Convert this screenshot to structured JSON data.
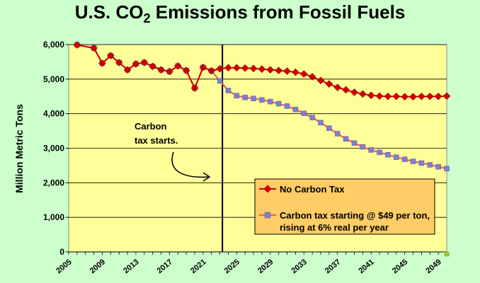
{
  "chart_data": {
    "type": "line",
    "title_main": "U.S. CO",
    "title_sub": "2",
    "title_rest": " Emissions from Fossil Fuels",
    "ylabel": "Million Metric Tons",
    "xlabel": "",
    "xlim": [
      2005,
      2050
    ],
    "ylim": [
      0,
      6000
    ],
    "yticks": [
      0,
      1000,
      2000,
      3000,
      4000,
      5000,
      6000
    ],
    "ytick_labels": [
      "0",
      "1,000",
      "2,000",
      "3,000",
      "4,000",
      "5,000",
      "6,000"
    ],
    "xticks": [
      2005,
      2009,
      2013,
      2017,
      2021,
      2025,
      2029,
      2033,
      2037,
      2041,
      2045,
      2049
    ],
    "xtick_labels": [
      "2005",
      "2009",
      "2013",
      "2017",
      "2021",
      "2025",
      "2029",
      "2033",
      "2037",
      "2041",
      "2045",
      "2049"
    ],
    "grid": "horizontal",
    "background_plot": "#ffff99",
    "background_page": "#ccffcc",
    "annotation": {
      "line1": "Carbon",
      "line2": "tax starts.",
      "marker_x": 2023.3
    },
    "legend": {
      "placement": "bottom-right",
      "background": "#ffcc66"
    },
    "series": [
      {
        "name": "No Carbon Tax",
        "color": "#cc0000",
        "marker_color": "#cc0000",
        "marker": "diamond",
        "x": [
          2006,
          2008,
          2009,
          2010,
          2011,
          2012,
          2013,
          2014,
          2015,
          2016,
          2017,
          2018,
          2019,
          2020,
          2021,
          2022,
          2023,
          2024,
          2025,
          2026,
          2027,
          2028,
          2029,
          2030,
          2031,
          2032,
          2033,
          2034,
          2035,
          2036,
          2037,
          2038,
          2039,
          2040,
          2041,
          2042,
          2043,
          2044,
          2045,
          2046,
          2047,
          2048,
          2049,
          2050
        ],
        "values": [
          5990,
          5900,
          5460,
          5680,
          5480,
          5270,
          5440,
          5480,
          5370,
          5270,
          5220,
          5380,
          5250,
          4740,
          5340,
          5240,
          5300,
          5330,
          5330,
          5320,
          5310,
          5290,
          5270,
          5250,
          5230,
          5200,
          5150,
          5070,
          4960,
          4860,
          4760,
          4690,
          4620,
          4570,
          4530,
          4510,
          4500,
          4500,
          4490,
          4490,
          4500,
          4500,
          4500,
          4510
        ],
        "label_line1": "No Carbon Tax",
        "label_line2": ""
      },
      {
        "name": "Carbon tax starting @ $49 per ton, rising at 6% real per year",
        "color": "#ff5050",
        "marker_color": "#7f7fcc",
        "marker": "square",
        "x": [
          2006,
          2008,
          2009,
          2010,
          2011,
          2012,
          2013,
          2014,
          2015,
          2016,
          2017,
          2018,
          2019,
          2020,
          2021,
          2022,
          2023,
          2024,
          2025,
          2026,
          2027,
          2028,
          2029,
          2030,
          2031,
          2032,
          2033,
          2034,
          2035,
          2036,
          2037,
          2038,
          2039,
          2040,
          2041,
          2042,
          2043,
          2044,
          2045,
          2046,
          2047,
          2048,
          2049,
          2050
        ],
        "values": [
          5990,
          5900,
          5460,
          5680,
          5480,
          5270,
          5440,
          5480,
          5370,
          5270,
          5220,
          5380,
          5250,
          4740,
          5340,
          5240,
          4950,
          4670,
          4520,
          4470,
          4440,
          4400,
          4350,
          4290,
          4220,
          4120,
          4010,
          3890,
          3740,
          3580,
          3420,
          3270,
          3150,
          3040,
          2950,
          2880,
          2810,
          2740,
          2680,
          2620,
          2570,
          2520,
          2460,
          2410
        ],
        "label_line1": "Carbon tax starting @ $49 per ton,",
        "label_line2": "rising at 6% real per year"
      }
    ]
  }
}
